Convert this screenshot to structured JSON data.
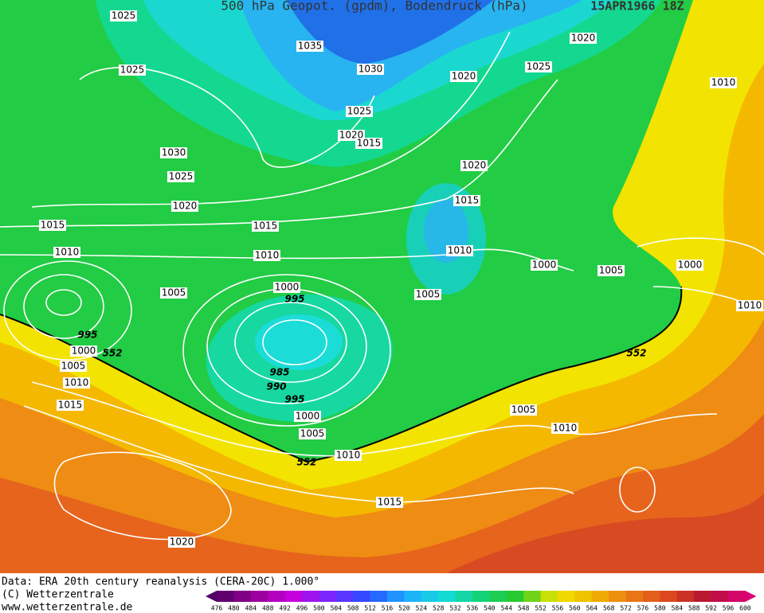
{
  "header": {
    "title": "500 hPa Geopot. (gpdm), Bodendruck (hPa)",
    "date": "15APR1966 18Z"
  },
  "isobar_labels": [
    1025,
    1025,
    1035,
    1030,
    1020,
    1025,
    1020,
    1010,
    1025,
    1020,
    1015,
    1030,
    1025,
    1020,
    1020,
    1015,
    1015,
    1015,
    1010,
    1010,
    1010,
    1000,
    1005,
    1000,
    1010,
    1000,
    995,
    1005,
    1005,
    995,
    1000,
    552,
    1005,
    1010,
    1015,
    985,
    990,
    995,
    1000,
    1005,
    552,
    1010,
    552,
    1005,
    1010,
    1015,
    1020
  ],
  "footer": {
    "source": "Data: ERA 20th century reanalysis (CERA-20C) 1.000°",
    "copyright": "(C) Wetterzentrale",
    "url": "www.wetterzentrale.de"
  },
  "colorbar": {
    "labels": [
      476,
      480,
      484,
      488,
      492,
      496,
      500,
      504,
      508,
      512,
      516,
      520,
      524,
      528,
      532,
      536,
      540,
      544,
      548,
      552,
      556,
      560,
      564,
      568,
      572,
      576,
      580,
      584,
      588,
      592,
      596,
      600
    ]
  }
}
